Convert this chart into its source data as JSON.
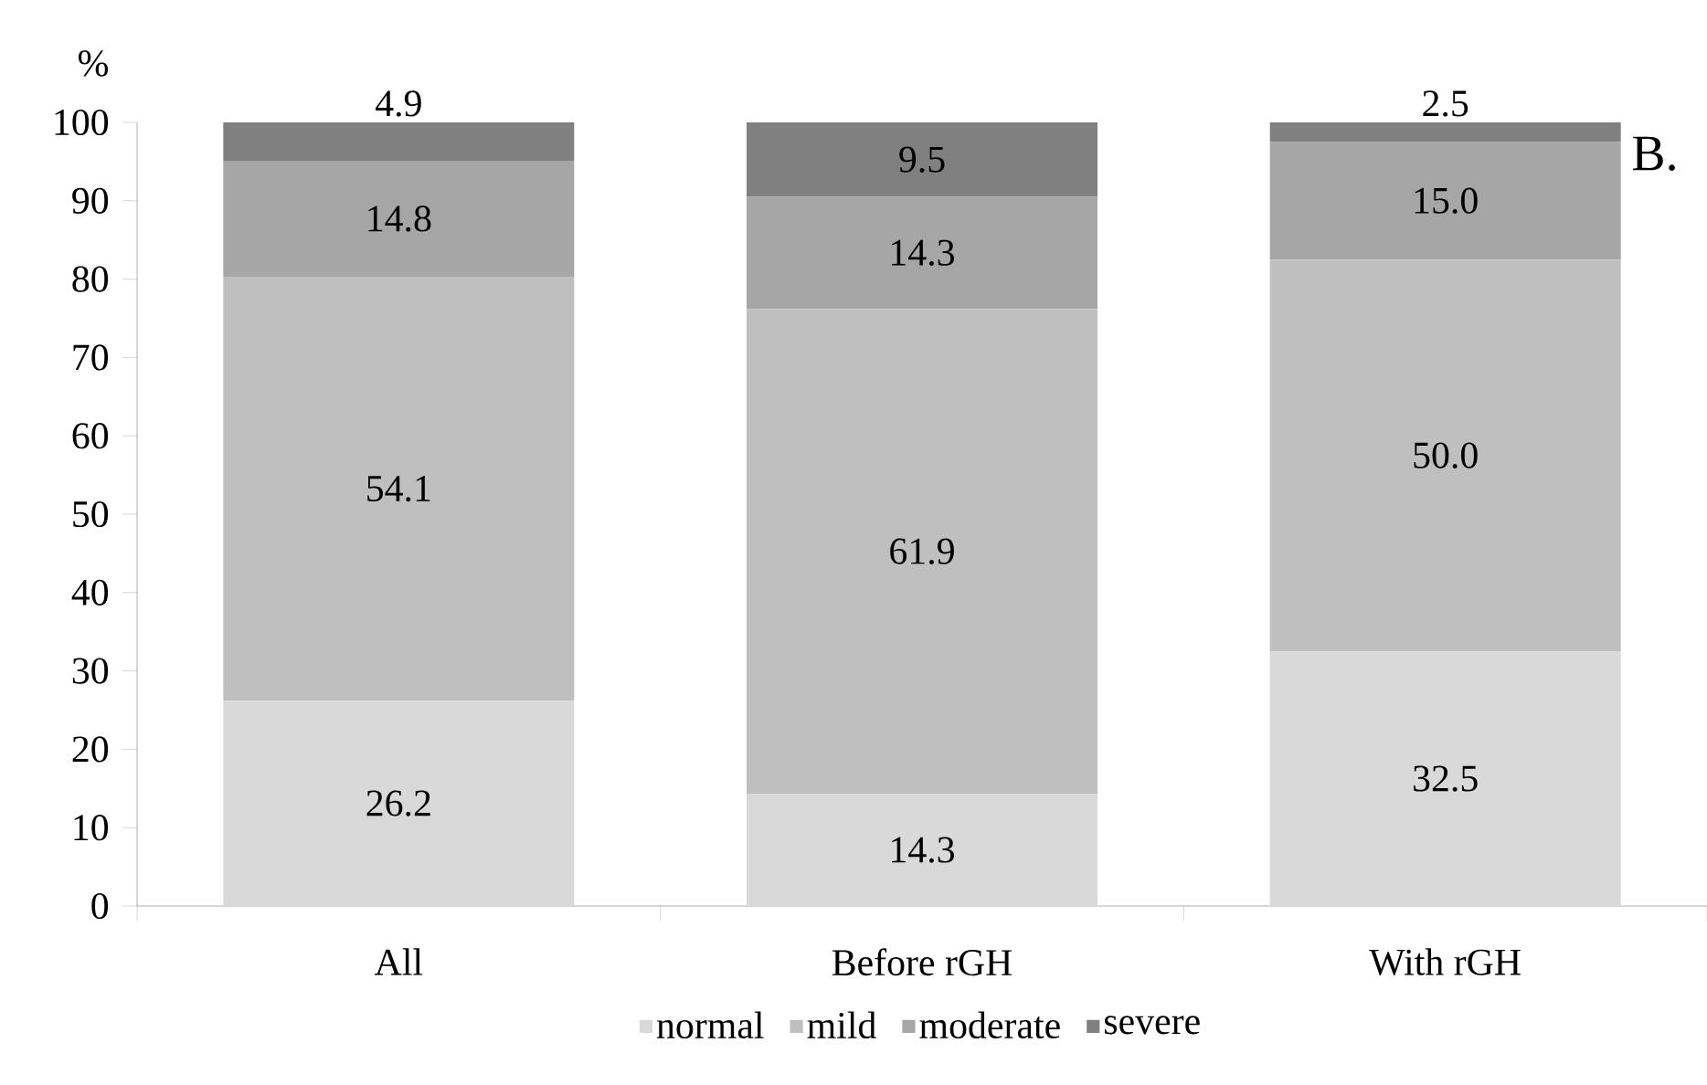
{
  "chart_data": {
    "type": "bar",
    "stacked": true,
    "ylabel": "%",
    "annotations": [
      "B."
    ],
    "categories": [
      "All",
      "Before rGH",
      "With rGH"
    ],
    "series": [
      {
        "name": "normal",
        "color": "#d9d9d9",
        "values": [
          26.2,
          14.3,
          32.5
        ],
        "value_labels": [
          "26.2",
          "14.3",
          "32.5"
        ]
      },
      {
        "name": "mild",
        "color": "#bfbfbf",
        "values": [
          54.1,
          61.9,
          50.0
        ],
        "value_labels": [
          "54.1",
          "61.9",
          "50.0"
        ]
      },
      {
        "name": "moderate",
        "color": "#a6a6a6",
        "values": [
          14.8,
          14.3,
          15.0
        ],
        "value_labels": [
          "14.8",
          "14.3",
          "15.0"
        ]
      },
      {
        "name": "severe",
        "color": "#808080",
        "values": [
          4.9,
          9.5,
          2.5
        ],
        "value_labels": [
          "4.9",
          "9.5",
          "2.5"
        ]
      }
    ],
    "ylim": [
      0,
      100
    ],
    "yticks": [
      0,
      10,
      20,
      30,
      40,
      50,
      60,
      70,
      80,
      90,
      100
    ],
    "legend": "bottom",
    "grid": false
  }
}
